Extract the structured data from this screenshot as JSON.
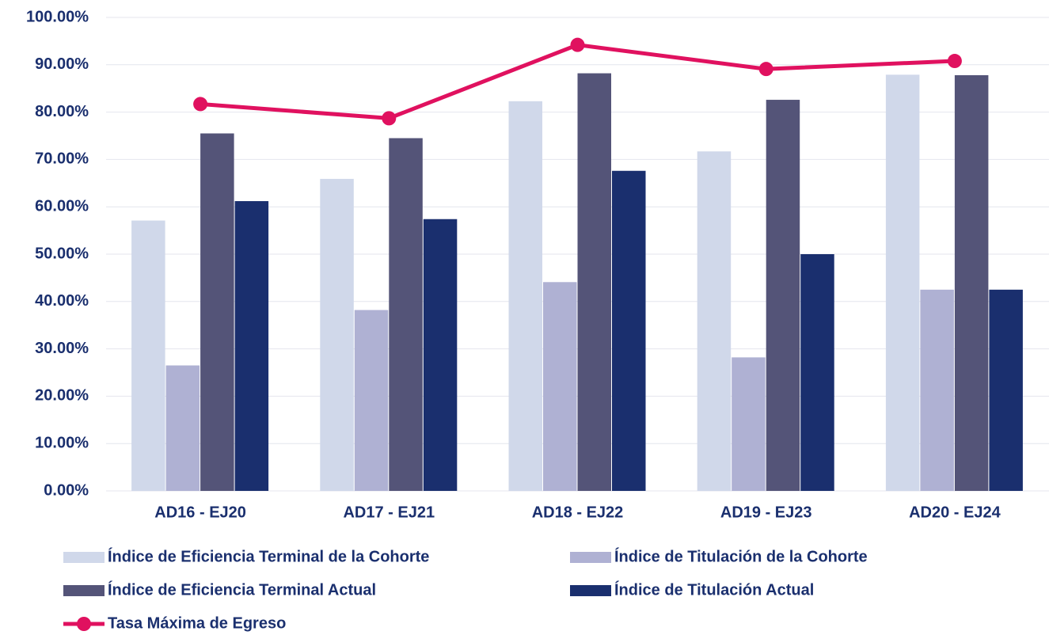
{
  "chart_data": {
    "type": "bar",
    "categories": [
      "AD16 - EJ20",
      "AD17 - EJ21",
      "AD18 - EJ22",
      "AD19 - EJ23",
      "AD20 - EJ24"
    ],
    "series": [
      {
        "name": "Índice de Eficiencia Terminal de la Cohorte",
        "color": "#d0d8ea",
        "type": "bar",
        "values": [
          57.1,
          65.9,
          82.3,
          71.7,
          87.9
        ]
      },
      {
        "name": "Índice de Titulación de la Cohorte",
        "color": "#afb1d3",
        "type": "bar",
        "values": [
          26.5,
          38.2,
          44.1,
          28.2,
          42.5
        ]
      },
      {
        "name": "Índice de Eficiencia Terminal Actual",
        "color": "#545478",
        "type": "bar",
        "values": [
          75.5,
          74.5,
          88.2,
          82.6,
          87.8
        ]
      },
      {
        "name": "Índice de Titulación Actual",
        "color": "#1a2f6e",
        "type": "bar",
        "values": [
          61.2,
          57.4,
          67.6,
          50.0,
          42.5
        ]
      },
      {
        "name": "Tasa Máxima de Egreso",
        "color": "#e0115f",
        "type": "line",
        "values": [
          81.7,
          78.7,
          94.2,
          89.1,
          90.8
        ]
      }
    ],
    "ylim": [
      0,
      100
    ],
    "yticks": [
      {
        "value": 0,
        "label": "0.00%"
      },
      {
        "value": 10,
        "label": "10.00%"
      },
      {
        "value": 20,
        "label": "20.00%"
      },
      {
        "value": 30,
        "label": "30.00%"
      },
      {
        "value": 40,
        "label": "40.00%"
      },
      {
        "value": 50,
        "label": "50.00%"
      },
      {
        "value": 60,
        "label": "60.00%"
      },
      {
        "value": 70,
        "label": "70.00%"
      },
      {
        "value": 80,
        "label": "80.00%"
      },
      {
        "value": 90,
        "label": "90.00%"
      },
      {
        "value": 100,
        "label": "100.00%"
      }
    ],
    "grid": true
  }
}
